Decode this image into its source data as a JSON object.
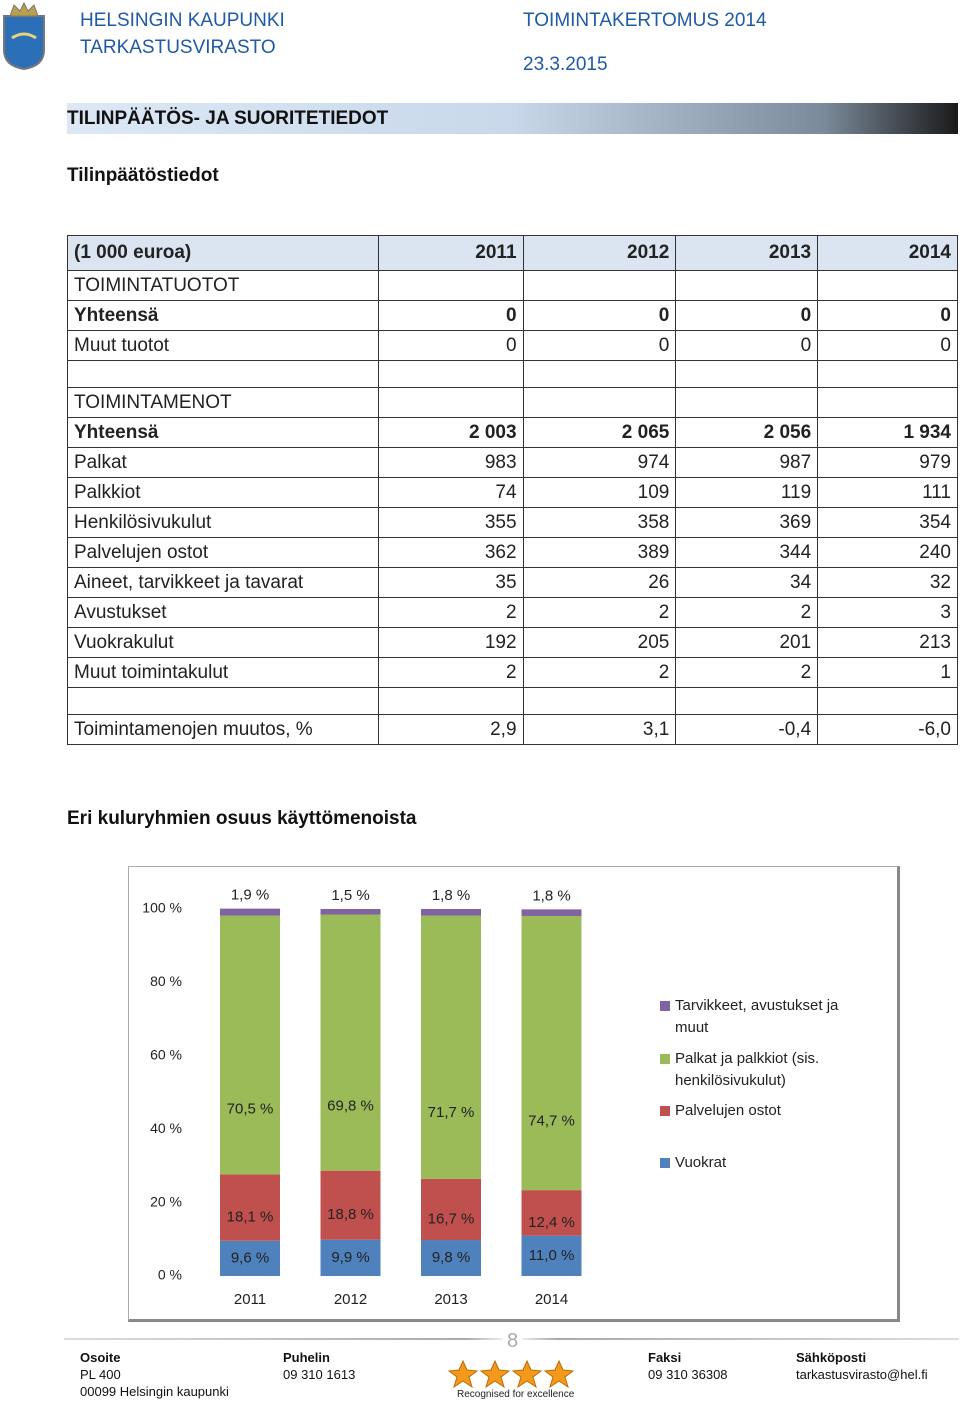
{
  "header": {
    "org1": "HELSINGIN KAUPUNKI",
    "org2": "TARKASTUSVIRASTO",
    "report": "TOIMINTAKERTOMUS 2014",
    "date": "23.3.2015"
  },
  "section_title": "TILINPÄÄTÖS- JA SUORITETIEDOT",
  "subtitle": "Tilinpäätöstiedot",
  "table": {
    "header": [
      "(1 000 euroa)",
      "2011",
      "2012",
      "2013",
      "2014"
    ],
    "sections": [
      {
        "title": "TOIMINTATUOTOT",
        "rows": [
          [
            "Yhteensä",
            "0",
            "0",
            "0",
            "0"
          ],
          [
            "Muut tuotot",
            "0",
            "0",
            "0",
            "0"
          ]
        ]
      },
      {
        "title": "TOIMINTAMENOT",
        "rows": [
          [
            "Yhteensä",
            "2 003",
            "2 065",
            "2 056",
            "1 934"
          ],
          [
            "Palkat",
            "983",
            "974",
            "987",
            "979"
          ],
          [
            "Palkkiot",
            "74",
            "109",
            "119",
            "111"
          ],
          [
            "Henkilösivukulut",
            "355",
            "358",
            "369",
            "354"
          ],
          [
            "Palvelujen ostot",
            "362",
            "389",
            "344",
            "240"
          ],
          [
            "Aineet, tarvikkeet ja tavarat",
            "35",
            "26",
            "34",
            "32"
          ],
          [
            "Avustukset",
            "2",
            "2",
            "2",
            "3"
          ],
          [
            "Vuokrakulut",
            "192",
            "205",
            "201",
            "213"
          ],
          [
            "Muut toimintakulut",
            "2",
            "2",
            "2",
            "1"
          ]
        ]
      }
    ],
    "change": [
      "Toimintamenojen muutos, %",
      "2,9",
      "3,1",
      "-0,4",
      "-6,0"
    ]
  },
  "chart_data": {
    "type": "stacked_bar",
    "title": "Eri kuluryhmien osuus käyttömenoista",
    "categories": [
      "2011",
      "2012",
      "2013",
      "2014"
    ],
    "series": [
      {
        "name": "Vuokrat",
        "color": "#4f81bd",
        "values": [
          9.6,
          9.9,
          9.8,
          11.0
        ],
        "value_labels": [
          "9,6 %",
          "9,9 %",
          "9,8 %",
          "11,0 %"
        ]
      },
      {
        "name": "Palvelujen ostot",
        "color": "#c0504d",
        "values": [
          18.1,
          18.8,
          16.7,
          12.4
        ],
        "value_labels": [
          "18,1 %",
          "18,8 %",
          "16,7 %",
          "12,4 %"
        ]
      },
      {
        "name": "Palkat ja palkkiot (sis. henkilösivukulut)",
        "color": "#9bbb59",
        "values": [
          70.5,
          69.8,
          71.7,
          74.7
        ],
        "value_labels": [
          "70,5 %",
          "69,8 %",
          "71,7 %",
          "74,7 %"
        ]
      },
      {
        "name": "Tarvikkeet, avustukset ja muut",
        "color": "#8064a2",
        "values": [
          1.9,
          1.5,
          1.8,
          1.8
        ],
        "value_labels": [
          "1,9 %",
          "1,5 %",
          "1,8 %",
          "1,8 %"
        ]
      }
    ],
    "ylim": [
      0,
      100
    ],
    "yticks": [
      {
        "value": 0,
        "label": "0 %"
      },
      {
        "value": 20,
        "label": "20 %"
      },
      {
        "value": 40,
        "label": "40 %"
      },
      {
        "value": 60,
        "label": "60 %"
      },
      {
        "value": 80,
        "label": "80 %"
      },
      {
        "value": 100,
        "label": "100 %"
      }
    ],
    "grid": false
  },
  "footer": {
    "page": "8",
    "badge": "Recognised for excellence",
    "columns": [
      [
        "Osoite",
        "PL 400",
        "00099 Helsingin kaupunki"
      ],
      [
        "Puhelin",
        "09 310 1613"
      ],
      [
        "Faksi",
        "09 310 36308"
      ],
      [
        "Sähköposti",
        "tarkastusvirasto@hel.fi"
      ]
    ]
  }
}
